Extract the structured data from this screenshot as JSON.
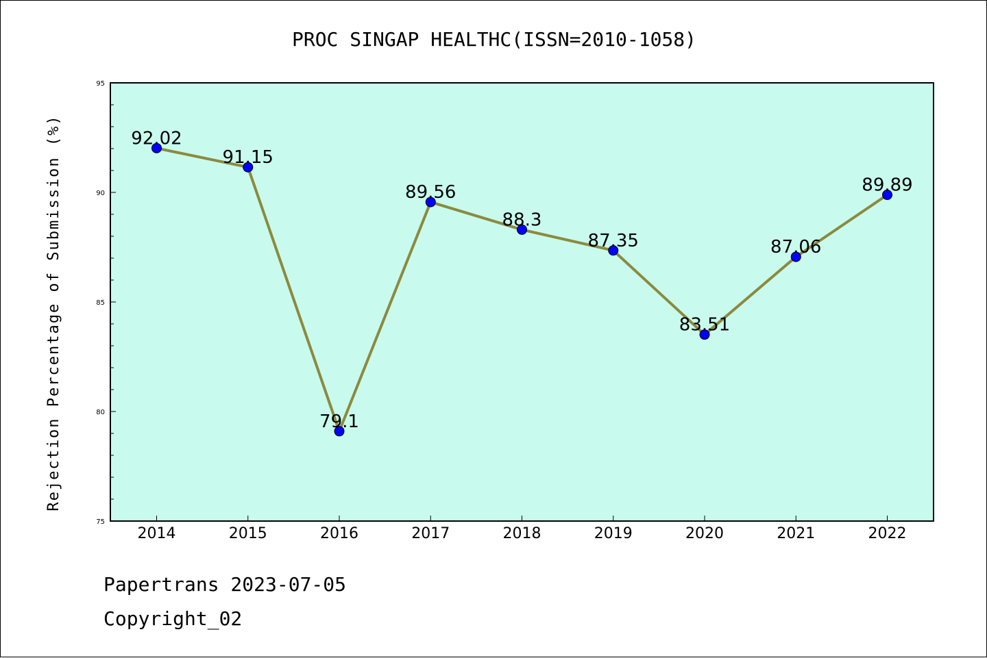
{
  "chart_data": {
    "type": "line",
    "title": "PROC SINGAP HEALTHC(ISSN=2010-1058)",
    "xlabel": "",
    "ylabel": "Rejection Percentage of Submission (%)",
    "categories": [
      "2014",
      "2015",
      "2016",
      "2017",
      "2018",
      "2019",
      "2020",
      "2021",
      "2022"
    ],
    "series": [
      {
        "values": [
          92.02,
          91.15,
          79.1,
          89.56,
          88.3,
          87.35,
          83.51,
          87.06,
          89.89
        ],
        "labels": [
          "92.02",
          "91.15",
          "79.1",
          "89.56",
          "88.3",
          "87.35",
          "83.51",
          "87.06",
          "89.89"
        ],
        "line_color": "#8c8a3e",
        "marker_color": "#0000ff"
      }
    ],
    "ylim": [
      75,
      95
    ],
    "yticks": [
      "75",
      "80",
      "85",
      "90",
      "95"
    ],
    "plot_background": "#c8fbee",
    "grid": false,
    "legend": "none"
  },
  "footer": {
    "line1": "Papertrans 2023-07-05",
    "line2": "Copyright_02"
  }
}
